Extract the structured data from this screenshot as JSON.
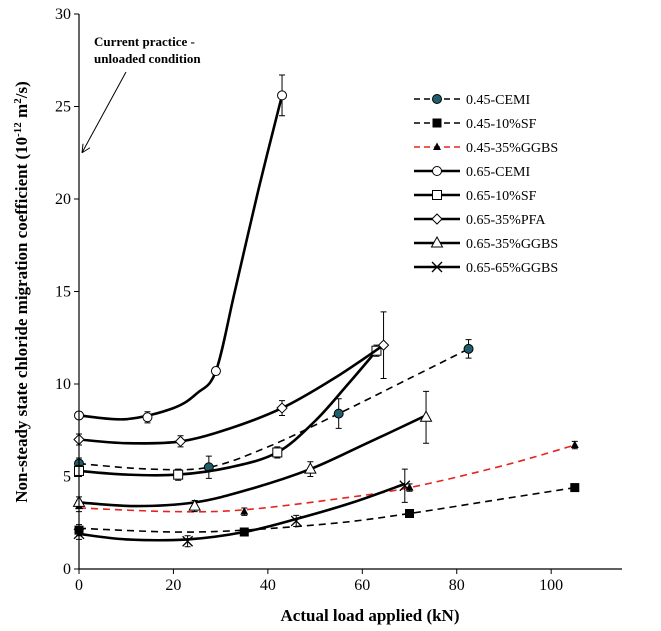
{
  "chart_data": {
    "type": "line",
    "title": "",
    "xlabel": "Actual load applied (kN)",
    "ylabel_parts": {
      "prefix": "Non-steady state chloride migration coefficient (10",
      "exponent1": "-12",
      "middle": " m",
      "exponent2": "2",
      "suffix": "/s)"
    },
    "xlim": [
      0,
      115
    ],
    "ylim": [
      0,
      30
    ],
    "xticks": [
      0,
      20,
      40,
      60,
      80,
      100
    ],
    "yticks": [
      0,
      5,
      10,
      15,
      20,
      25,
      30
    ],
    "xtick_labels": [
      "0",
      "20",
      "40",
      "60",
      "80",
      "100"
    ],
    "ytick_labels": [
      "0",
      "5",
      "10",
      "15",
      "20",
      "25",
      "30"
    ],
    "grid": false,
    "legend_position": "right",
    "annotation": {
      "lines": [
        "Current practice -",
        "unloaded condition"
      ],
      "arrow_points_to": [
        0,
        22.5
      ]
    },
    "series": [
      {
        "name": "0.45-CEMI",
        "style": "dashed",
        "color": "#000000",
        "marker": "filled-circle-teal",
        "x": [
          0,
          27.5,
          55,
          82.5
        ],
        "y": [
          5.7,
          5.5,
          8.4,
          11.9
        ],
        "err": [
          0.3,
          0.6,
          0.8,
          0.5
        ],
        "trend_x": [
          0,
          15,
          27.5,
          40,
          55,
          70,
          82.5
        ],
        "trend_y": [
          5.7,
          5.4,
          5.5,
          6.6,
          8.4,
          10.3,
          11.9
        ]
      },
      {
        "name": "0.45-10%SF",
        "style": "dashed",
        "color": "#000000",
        "marker": "filled-square",
        "x": [
          0,
          35,
          70,
          105
        ],
        "y": [
          2.1,
          2.0,
          3.0,
          4.4
        ],
        "err": [
          0.3,
          0.2,
          0.2,
          0.2
        ],
        "trend_x": [
          0,
          20,
          35,
          55,
          70,
          90,
          105
        ],
        "trend_y": [
          2.2,
          2.0,
          2.1,
          2.5,
          3.0,
          3.8,
          4.4
        ]
      },
      {
        "name": "0.45-35%GGBS",
        "style": "dashed",
        "color": "#e8231e",
        "marker": "filled-triangle",
        "x": [
          0,
          35,
          70,
          105
        ],
        "y": [
          3.4,
          3.1,
          4.4,
          6.7
        ],
        "err": [
          0.3,
          0.2,
          0.2,
          0.2
        ],
        "trend_x": [
          0,
          20,
          35,
          55,
          70,
          90,
          105
        ],
        "trend_y": [
          3.3,
          3.1,
          3.2,
          3.8,
          4.4,
          5.6,
          6.7
        ]
      },
      {
        "name": "0.65-CEMI",
        "style": "solid",
        "color": "#000000",
        "marker": "open-circle",
        "x": [
          0,
          14.5,
          29,
          43
        ],
        "y": [
          8.3,
          8.2,
          10.7,
          25.6
        ],
        "err": [
          0.2,
          0.3,
          0.2,
          1.1
        ],
        "trend_x": [
          0,
          10,
          20,
          25,
          29,
          33,
          38,
          43
        ],
        "trend_y": [
          8.3,
          8.1,
          8.7,
          9.5,
          10.7,
          15,
          20.5,
          25.6
        ]
      },
      {
        "name": "0.65-10%SF",
        "style": "solid",
        "color": "#000000",
        "marker": "open-square",
        "x": [
          0,
          21,
          42,
          63
        ],
        "y": [
          5.3,
          5.1,
          6.3,
          11.8
        ],
        "err": [
          0.3,
          0.3,
          0.3,
          0.3
        ],
        "trend_x": [
          0,
          10,
          21,
          32,
          42,
          50,
          57,
          63
        ],
        "trend_y": [
          5.3,
          5.1,
          5.1,
          5.5,
          6.3,
          8.0,
          10.0,
          11.8
        ]
      },
      {
        "name": "0.65-35%PFA",
        "style": "solid",
        "color": "#000000",
        "marker": "open-diamond",
        "x": [
          0,
          21.5,
          43,
          64.5
        ],
        "y": [
          7.0,
          6.9,
          8.7,
          12.1
        ],
        "err": [
          0.3,
          0.3,
          0.4,
          1.8
        ],
        "trend_x": [
          0,
          10,
          21.5,
          32,
          43,
          54,
          64.5
        ],
        "trend_y": [
          7.0,
          6.8,
          6.9,
          7.6,
          8.7,
          10.3,
          12.1
        ]
      },
      {
        "name": "0.65-35%GGBS",
        "style": "solid",
        "color": "#000000",
        "marker": "open-triangle",
        "x": [
          0,
          24.5,
          49,
          73.5
        ],
        "y": [
          3.6,
          3.4,
          5.4,
          8.2
        ],
        "err": [
          0.3,
          0.3,
          0.4,
          1.4
        ],
        "trend_x": [
          0,
          12,
          24.5,
          36,
          49,
          61,
          73.5
        ],
        "trend_y": [
          3.6,
          3.4,
          3.6,
          4.3,
          5.4,
          6.8,
          8.3
        ]
      },
      {
        "name": "0.65-65%GGBS",
        "style": "solid",
        "color": "#000000",
        "marker": "cross",
        "x": [
          0,
          23,
          46,
          69
        ],
        "y": [
          1.9,
          1.5,
          2.6,
          4.5
        ],
        "err": [
          0.3,
          0.3,
          0.3,
          0.9
        ],
        "trend_x": [
          0,
          10,
          23,
          35,
          46,
          58,
          69
        ],
        "trend_y": [
          1.9,
          1.6,
          1.6,
          2.0,
          2.7,
          3.6,
          4.6
        ]
      }
    ]
  }
}
